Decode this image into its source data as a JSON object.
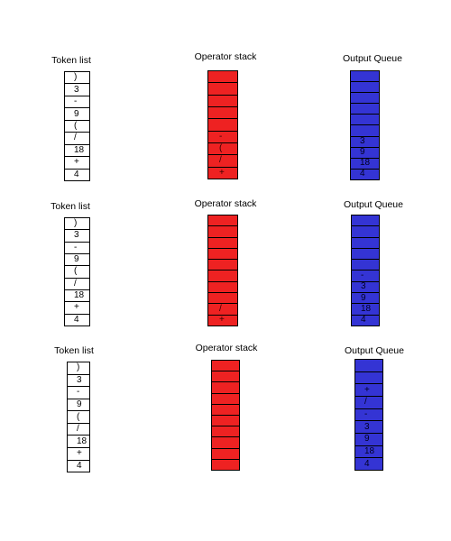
{
  "colors": {
    "stack": "#ee2222",
    "queue": "#3434d4"
  },
  "panels": [
    {
      "token_title": "Token list",
      "stack_title": "Operator stack",
      "queue_title": "Output Queue",
      "tokens": [
        ")",
        "3",
        "-",
        "9",
        "(",
        "/",
        "18",
        "+",
        "4"
      ],
      "stack": [
        "",
        "",
        "",
        "",
        "",
        "-",
        "(",
        "/",
        "+"
      ],
      "queue": [
        "",
        "",
        "",
        "",
        "",
        "",
        "3",
        "9",
        "18",
        "4"
      ]
    },
    {
      "token_title": "Token list",
      "stack_title": "Operator stack",
      "queue_title": "Output Queue",
      "tokens": [
        ")",
        "3",
        "-",
        "9",
        "(",
        "/",
        "18",
        "+",
        "4"
      ],
      "stack": [
        "",
        "",
        "",
        "",
        "",
        "",
        "",
        "",
        "/",
        "+"
      ],
      "queue": [
        "",
        "",
        "",
        "",
        "",
        "-",
        "3",
        "9",
        "18",
        "4"
      ]
    },
    {
      "token_title": "Token list",
      "stack_title": "Operator stack",
      "queue_title": "Output Queue",
      "tokens": [
        ")",
        "3",
        "-",
        "9",
        "(",
        "/",
        "18",
        "+",
        "4"
      ],
      "stack": [
        "",
        "",
        "",
        "",
        "",
        "",
        "",
        "",
        "",
        ""
      ],
      "queue": [
        "",
        "",
        "+",
        "/",
        "-",
        "3",
        "9",
        "18",
        "4"
      ]
    }
  ]
}
